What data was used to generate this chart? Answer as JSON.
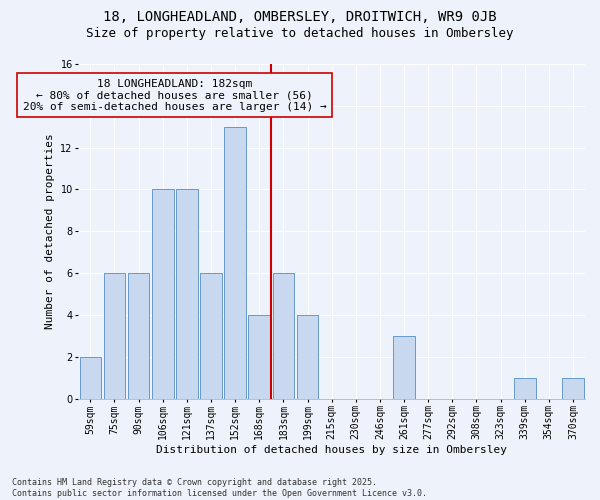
{
  "title1": "18, LONGHEADLAND, OMBERSLEY, DROITWICH, WR9 0JB",
  "title2": "Size of property relative to detached houses in Ombersley",
  "xlabel": "Distribution of detached houses by size in Ombersley",
  "ylabel": "Number of detached properties",
  "categories": [
    "59sqm",
    "75sqm",
    "90sqm",
    "106sqm",
    "121sqm",
    "137sqm",
    "152sqm",
    "168sqm",
    "183sqm",
    "199sqm",
    "215sqm",
    "230sqm",
    "246sqm",
    "261sqm",
    "277sqm",
    "292sqm",
    "308sqm",
    "323sqm",
    "339sqm",
    "354sqm",
    "370sqm"
  ],
  "values": [
    2,
    6,
    6,
    10,
    10,
    6,
    13,
    4,
    6,
    4,
    0,
    0,
    0,
    3,
    0,
    0,
    0,
    0,
    1,
    0,
    1
  ],
  "bar_color": "#c8d8ee",
  "bar_edgecolor": "#6699cc",
  "vline_index": 7.5,
  "vline_color": "#cc0000",
  "annotation_text": "18 LONGHEADLAND: 182sqm\n← 80% of detached houses are smaller (56)\n20% of semi-detached houses are larger (14) →",
  "ylim": [
    0,
    16
  ],
  "yticks": [
    0,
    2,
    4,
    6,
    8,
    10,
    12,
    14,
    16
  ],
  "background_color": "#eef2fa",
  "grid_color": "#ffffff",
  "footer_text": "Contains HM Land Registry data © Crown copyright and database right 2025.\nContains public sector information licensed under the Open Government Licence v3.0.",
  "title1_fontsize": 10,
  "title2_fontsize": 9,
  "xlabel_fontsize": 8,
  "ylabel_fontsize": 8,
  "tick_fontsize": 7,
  "annotation_fontsize": 8,
  "footer_fontsize": 6
}
